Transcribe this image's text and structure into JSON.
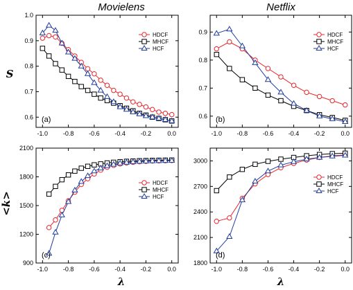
{
  "figure": {
    "col_titles": [
      "Movielens",
      "Netflix"
    ],
    "xlabel": "λ",
    "ylabels": [
      "S",
      "<k>"
    ]
  },
  "colors": {
    "HDCF": "#e8262b",
    "MHCF": "#000000",
    "HCF": "#1f3b9e"
  },
  "chart_data": [
    {
      "type": "line",
      "panel_label": "(a)",
      "dataset": "Movielens",
      "xlim": [
        -1.05,
        0.05
      ],
      "ylim": [
        0.56,
        1.0
      ],
      "x_ticks": [
        "-1.0",
        "-0.8",
        "-0.6",
        "-0.4",
        "-0.2",
        "0.0"
      ],
      "y_ticks": [
        "0.6",
        "0.7",
        "0.8",
        "0.9",
        "1.0"
      ],
      "legend_position": "top-right",
      "series": [
        {
          "name": "HDCF",
          "marker": "circle",
          "x": [
            -1.0,
            -0.95,
            -0.9,
            -0.85,
            -0.8,
            -0.75,
            -0.7,
            -0.65,
            -0.6,
            -0.55,
            -0.5,
            -0.45,
            -0.4,
            -0.35,
            -0.3,
            -0.25,
            -0.2,
            -0.15,
            -0.1,
            -0.05,
            0.0
          ],
          "y": [
            0.91,
            0.92,
            0.915,
            0.89,
            0.865,
            0.84,
            0.815,
            0.79,
            0.77,
            0.745,
            0.725,
            0.705,
            0.69,
            0.675,
            0.66,
            0.65,
            0.64,
            0.63,
            0.62,
            0.615,
            0.61
          ]
        },
        {
          "name": "MHCF",
          "marker": "square",
          "x": [
            -1.0,
            -0.95,
            -0.9,
            -0.85,
            -0.8,
            -0.75,
            -0.7,
            -0.65,
            -0.6,
            -0.55,
            -0.5,
            -0.45,
            -0.4,
            -0.35,
            -0.3,
            -0.25,
            -0.2,
            -0.15,
            -0.1,
            -0.05,
            0.0
          ],
          "y": [
            0.87,
            0.84,
            0.81,
            0.785,
            0.76,
            0.74,
            0.72,
            0.705,
            0.69,
            0.675,
            0.665,
            0.655,
            0.645,
            0.635,
            0.625,
            0.615,
            0.608,
            0.6,
            0.595,
            0.59,
            0.585
          ]
        },
        {
          "name": "HCF",
          "marker": "triangle",
          "x": [
            -1.0,
            -0.95,
            -0.9,
            -0.85,
            -0.8,
            -0.75,
            -0.7,
            -0.65,
            -0.6,
            -0.55,
            -0.5,
            -0.45,
            -0.4,
            -0.35,
            -0.3,
            -0.25,
            -0.2,
            -0.15,
            -0.1,
            -0.05,
            0.0
          ],
          "y": [
            0.93,
            0.96,
            0.94,
            0.89,
            0.855,
            0.83,
            0.8,
            0.77,
            0.735,
            0.705,
            0.68,
            0.66,
            0.64,
            0.63,
            0.62,
            0.612,
            0.605,
            0.6,
            0.595,
            0.59,
            0.585
          ]
        }
      ]
    },
    {
      "type": "line",
      "panel_label": "(b)",
      "dataset": "Netflix",
      "xlim": [
        -1.05,
        0.05
      ],
      "ylim": [
        0.56,
        0.96
      ],
      "x_ticks": [
        "-1.0",
        "-0.8",
        "-0.6",
        "-0.4",
        "-0.2",
        "0.0"
      ],
      "y_ticks": [
        "0.6",
        "0.7",
        "0.8",
        "0.9"
      ],
      "legend_position": "top-right",
      "series": [
        {
          "name": "HDCF",
          "marker": "circle",
          "x": [
            -1.0,
            -0.9,
            -0.8,
            -0.7,
            -0.6,
            -0.5,
            -0.4,
            -0.3,
            -0.2,
            -0.1,
            0.0
          ],
          "y": [
            0.84,
            0.865,
            0.84,
            0.8,
            0.77,
            0.74,
            0.71,
            0.685,
            0.67,
            0.655,
            0.64
          ]
        },
        {
          "name": "MHCF",
          "marker": "square",
          "x": [
            -1.0,
            -0.9,
            -0.8,
            -0.7,
            -0.6,
            -0.5,
            -0.4,
            -0.3,
            -0.2,
            -0.1,
            0.0
          ],
          "y": [
            0.82,
            0.77,
            0.73,
            0.7,
            0.675,
            0.655,
            0.635,
            0.62,
            0.605,
            0.595,
            0.585
          ]
        },
        {
          "name": "HCF",
          "marker": "triangle",
          "x": [
            -1.0,
            -0.9,
            -0.8,
            -0.7,
            -0.6,
            -0.5,
            -0.4,
            -0.3,
            -0.2,
            -0.1,
            0.0
          ],
          "y": [
            0.895,
            0.91,
            0.85,
            0.79,
            0.73,
            0.685,
            0.645,
            0.62,
            0.6,
            0.59,
            0.58
          ]
        }
      ]
    },
    {
      "type": "line",
      "panel_label": "(c)",
      "dataset": "Movielens",
      "xlim": [
        -1.05,
        0.05
      ],
      "ylim": [
        900,
        2100
      ],
      "x_ticks": [
        "-1.0",
        "-0.8",
        "-0.6",
        "-0.4",
        "-0.2",
        "0.0"
      ],
      "y_ticks": [
        "900",
        "1200",
        "1500",
        "1800",
        "2100"
      ],
      "legend_position": "center-right",
      "series": [
        {
          "name": "HDCF",
          "marker": "circle",
          "x": [
            -0.95,
            -0.9,
            -0.85,
            -0.8,
            -0.75,
            -0.7,
            -0.65,
            -0.6,
            -0.55,
            -0.5,
            -0.45,
            -0.4,
            -0.35,
            -0.3,
            -0.25,
            -0.2,
            -0.15,
            -0.1,
            -0.05,
            0.0
          ],
          "y": [
            1270,
            1350,
            1450,
            1550,
            1640,
            1720,
            1780,
            1830,
            1870,
            1900,
            1920,
            1935,
            1945,
            1952,
            1958,
            1962,
            1965,
            1967,
            1969,
            1970
          ]
        },
        {
          "name": "MHCF",
          "marker": "square",
          "x": [
            -0.95,
            -0.9,
            -0.85,
            -0.8,
            -0.75,
            -0.7,
            -0.65,
            -0.6,
            -0.55,
            -0.5,
            -0.45,
            -0.4,
            -0.35,
            -0.3,
            -0.25,
            -0.2,
            -0.15,
            -0.1,
            -0.05,
            0.0
          ],
          "y": [
            1620,
            1700,
            1770,
            1820,
            1860,
            1890,
            1910,
            1925,
            1935,
            1945,
            1952,
            1958,
            1962,
            1965,
            1968,
            1970,
            1972,
            1973,
            1974,
            1975
          ]
        },
        {
          "name": "HCF",
          "marker": "triangle",
          "x": [
            -0.95,
            -0.9,
            -0.85,
            -0.8,
            -0.75,
            -0.7,
            -0.65,
            -0.6,
            -0.55,
            -0.5,
            -0.45,
            -0.4,
            -0.35,
            -0.3,
            -0.25,
            -0.2,
            -0.15,
            -0.1,
            -0.05,
            0.0
          ],
          "y": [
            1000,
            1220,
            1400,
            1540,
            1660,
            1750,
            1810,
            1860,
            1890,
            1915,
            1930,
            1942,
            1950,
            1956,
            1960,
            1963,
            1966,
            1968,
            1969,
            1970
          ]
        }
      ]
    },
    {
      "type": "line",
      "panel_label": "(d)",
      "dataset": "Netflix",
      "xlim": [
        -1.05,
        0.05
      ],
      "ylim": [
        1800,
        3150
      ],
      "x_ticks": [
        "-1.0",
        "-0.8",
        "-0.6",
        "-0.4",
        "-0.2",
        "0.0"
      ],
      "y_ticks": [
        "1800",
        "2100",
        "2400",
        "2700",
        "3000"
      ],
      "legend_position": "center-right",
      "series": [
        {
          "name": "HDCF",
          "marker": "circle",
          "x": [
            -1.0,
            -0.9,
            -0.8,
            -0.7,
            -0.6,
            -0.5,
            -0.4,
            -0.3,
            -0.2,
            -0.1,
            0.0
          ],
          "y": [
            2290,
            2330,
            2560,
            2730,
            2840,
            2920,
            2970,
            3010,
            3040,
            3060,
            3070
          ]
        },
        {
          "name": "MHCF",
          "marker": "square",
          "x": [
            -1.0,
            -0.9,
            -0.8,
            -0.7,
            -0.6,
            -0.5,
            -0.4,
            -0.3,
            -0.2,
            -0.1,
            0.0
          ],
          "y": [
            2650,
            2810,
            2900,
            2960,
            2995,
            3020,
            3040,
            3060,
            3075,
            3085,
            3090
          ]
        },
        {
          "name": "HCF",
          "marker": "triangle",
          "x": [
            -1.0,
            -0.9,
            -0.8,
            -0.7,
            -0.6,
            -0.5,
            -0.4,
            -0.3,
            -0.2,
            -0.1,
            0.0
          ],
          "y": [
            1940,
            2110,
            2540,
            2760,
            2880,
            2950,
            2990,
            3020,
            3040,
            3055,
            3065
          ]
        }
      ]
    }
  ]
}
